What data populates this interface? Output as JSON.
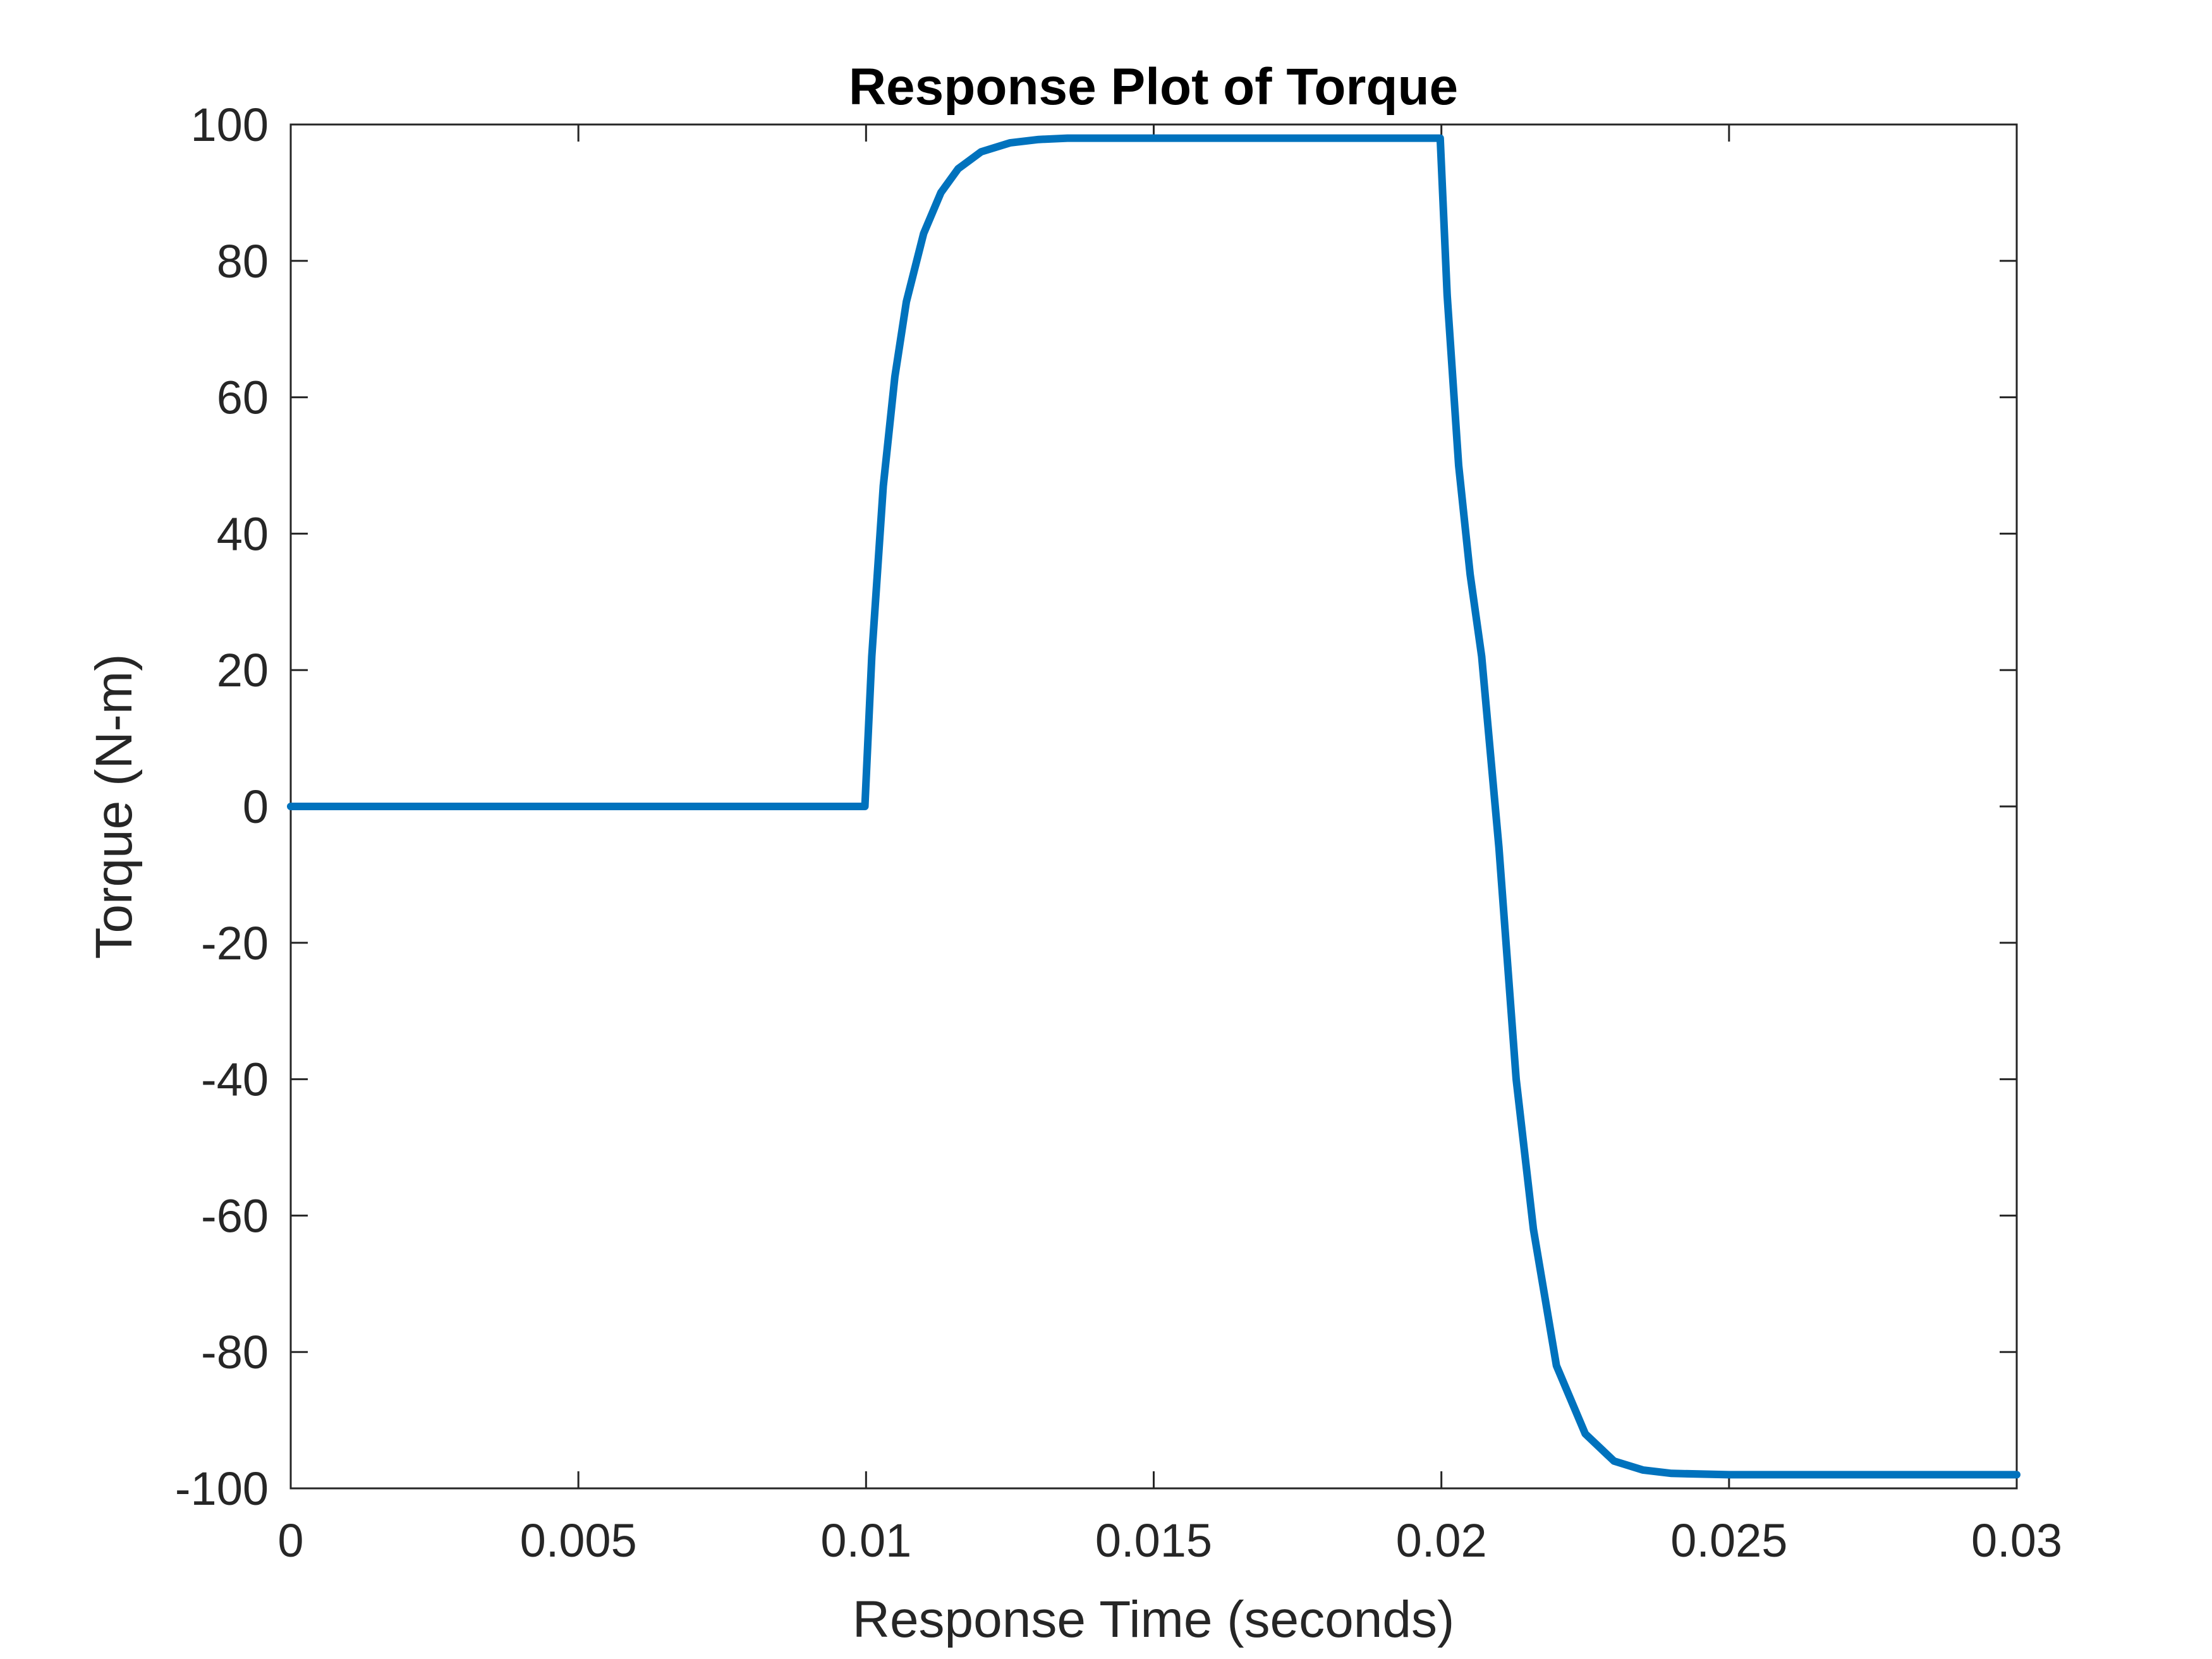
{
  "chart_data": {
    "type": "line",
    "title": "Response Plot of Torque",
    "xlabel": "Response Time (seconds)",
    "ylabel": "Torque (N-m)",
    "xlim": [
      0,
      0.03
    ],
    "ylim": [
      -100,
      100
    ],
    "xticks": [
      0,
      0.005,
      0.01,
      0.015,
      0.02,
      0.025,
      0.03
    ],
    "xtick_labels": [
      "0",
      "0.005",
      "0.01",
      "0.015",
      "0.02",
      "0.025",
      "0.03"
    ],
    "yticks": [
      100,
      80,
      60,
      40,
      20,
      0,
      -20,
      -40,
      -60,
      -80,
      -100
    ],
    "ytick_labels": [
      "100",
      "80",
      "60",
      "40",
      "20",
      "0",
      "-20",
      "-40",
      "-60",
      "-80",
      "-100"
    ],
    "grid": false,
    "legend": "none",
    "line_color": "#0072BD",
    "series": [
      {
        "x": [
          0,
          0.001,
          0.002,
          0.003,
          0.004,
          0.005,
          0.006,
          0.007,
          0.008,
          0.009,
          0.00998,
          0.0101,
          0.0103,
          0.0105,
          0.0107,
          0.011,
          0.0113,
          0.0116,
          0.012,
          0.0125,
          0.013,
          0.0135,
          0.014,
          0.015,
          0.016,
          0.017,
          0.018,
          0.019,
          0.01998,
          0.0201,
          0.0203,
          0.0205,
          0.0207,
          0.021,
          0.0213,
          0.0216,
          0.022,
          0.0225,
          0.023,
          0.0235,
          0.024,
          0.025,
          0.026,
          0.027,
          0.028,
          0.029,
          0.03
        ],
        "y": [
          0,
          0,
          0,
          0,
          0,
          0,
          0,
          0,
          0,
          0,
          0,
          22,
          47,
          63,
          74,
          84,
          90,
          93.5,
          96,
          97.3,
          97.8,
          98,
          98,
          98,
          98,
          98,
          98,
          98,
          98,
          75,
          50,
          34,
          22,
          -6,
          -40,
          -62,
          -82,
          -92,
          -96,
          -97.3,
          -97.8,
          -98,
          -98,
          -98,
          -98,
          -98,
          -98
        ]
      }
    ]
  }
}
